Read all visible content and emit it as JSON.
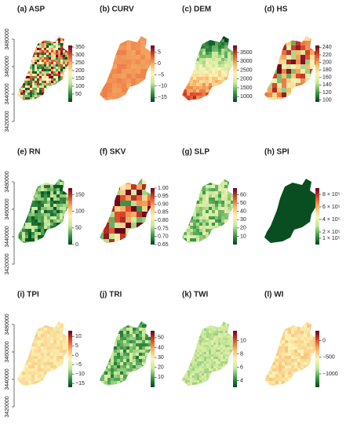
{
  "colors": [
    "#00441b",
    "#3f9a4a",
    "#c7e89b",
    "#fbf3b5",
    "#f9b468",
    "#e0492b",
    "#67001f"
  ],
  "y_axis": {
    "lim": [
      3420000,
      3480000
    ],
    "ticks": [
      3420000,
      3440000,
      3460000,
      3480000
    ]
  },
  "panels": [
    {
      "title": "(a) ASP",
      "lim": [
        0,
        360
      ],
      "ticks": [
        50,
        100,
        150,
        200,
        250,
        300,
        350
      ]
    },
    {
      "title": "(b) CURV",
      "lim": [
        -17,
        8
      ],
      "ticks": [
        5,
        0,
        {
          "value": -5,
          "label": "−5"
        },
        {
          "value": -10,
          "label": "−10"
        },
        {
          "value": -15,
          "label": "−15"
        }
      ]
    },
    {
      "title": "(c) DEM",
      "lim": [
        700,
        3900
      ],
      "ticks": [
        1000,
        1500,
        2000,
        2500,
        3000,
        3500
      ]
    },
    {
      "title": "(d) HS",
      "lim": [
        95,
        245
      ],
      "ticks": [
        100,
        120,
        140,
        160,
        180,
        200,
        220,
        240
      ]
    },
    {
      "title": "(e) RN",
      "lim": [
        0,
        170
      ],
      "ticks": [
        0,
        50,
        100,
        150
      ]
    },
    {
      "title": "(f) SKV",
      "lim": [
        0.65,
        1.0
      ],
      "ticks": [
        0.65,
        {
          "value": 0.7,
          "label": "0.70"
        },
        0.75,
        {
          "value": 0.8,
          "label": "0.80"
        },
        0.85,
        {
          "value": 0.9,
          "label": "0.90"
        },
        0.95,
        {
          "value": 1.0,
          "label": "1.00"
        }
      ]
    },
    {
      "title": "(g) SLP",
      "lim": [
        0,
        68
      ],
      "ticks": [
        10,
        20,
        30,
        40,
        50,
        60
      ]
    },
    {
      "title": "(h) SPI",
      "lim": [
        0,
        900000
      ],
      "ticks": [
        {
          "value": 100000,
          "label": "1 × 10⁵"
        },
        {
          "value": 200000,
          "label": "2 × 10⁵"
        },
        {
          "value": 400000,
          "label": "4 × 10⁵"
        },
        {
          "value": 600000,
          "label": "6 × 10⁵"
        },
        {
          "value": 800000,
          "label": "8 × 10⁵"
        }
      ]
    },
    {
      "title": "(i) TPI",
      "lim": [
        -17,
        13
      ],
      "ticks": [
        10,
        5,
        0,
        {
          "value": -5,
          "label": "−5"
        },
        {
          "value": -10,
          "label": "−10"
        },
        {
          "value": -15,
          "label": "−15"
        }
      ]
    },
    {
      "title": "(j) TRI",
      "lim": [
        0,
        57
      ],
      "ticks": [
        10,
        20,
        30,
        40,
        50
      ]
    },
    {
      "title": "(k) TWI",
      "lim": [
        3,
        11.5
      ],
      "ticks": [
        4,
        6,
        8,
        10
      ]
    },
    {
      "title": "(l) WI",
      "lim": [
        -1400,
        300
      ],
      "ticks": [
        0,
        {
          "value": -500,
          "label": "−500"
        },
        {
          "value": -1000,
          "label": "−1000"
        }
      ]
    }
  ]
}
